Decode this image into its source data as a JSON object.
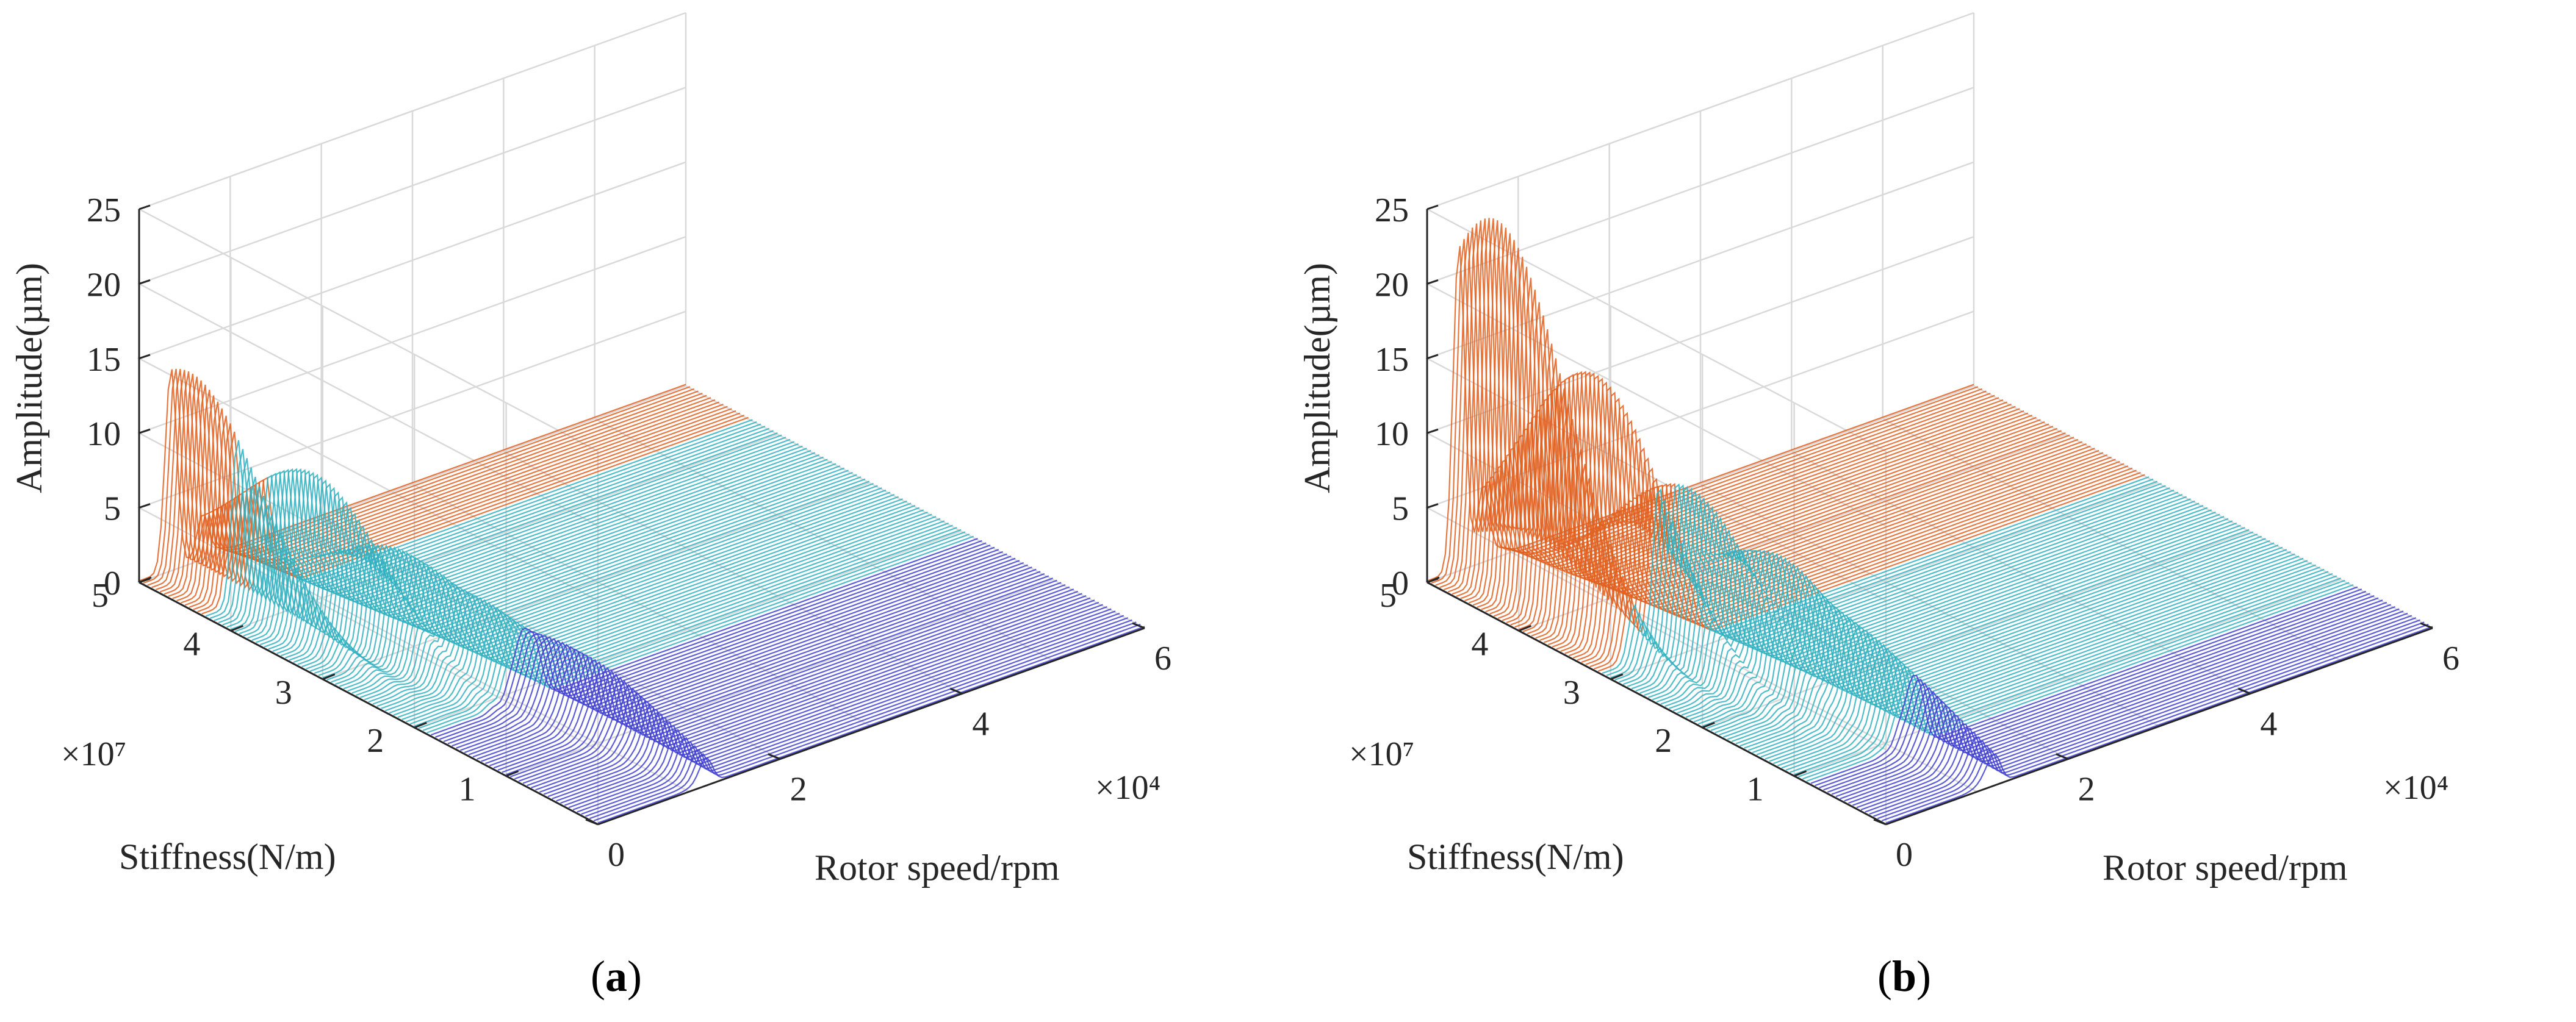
{
  "colors": {
    "series": "#4040d0",
    "peak_high": "#e06020",
    "peak_mid": "#30b0c0",
    "grid": "#d9d9d9",
    "axis": "#262626"
  },
  "chart_data": [
    {
      "type": "surface-waterfall",
      "caption": {
        "open": "(",
        "letter": "a",
        "close": ")"
      },
      "zlabel": "Amplitude(µm)",
      "ylabel": "Stiffness(N/m)",
      "xlabel": "Rotor speed/rpm",
      "x_multiplier": "×10⁴",
      "y_multiplier": "×10⁷",
      "x_ticks": [
        "0",
        "2",
        "4",
        "6"
      ],
      "y_ticks": [
        "1",
        "2",
        "3",
        "4",
        "5"
      ],
      "z_ticks": [
        "0",
        "5",
        "10",
        "15",
        "20",
        "25"
      ],
      "xlim": [
        0,
        6
      ],
      "ylim": [
        0,
        5
      ],
      "zlim": [
        0,
        25
      ],
      "peaks": [
        {
          "speed": 0.35,
          "stiffness": 4.8,
          "amplitude": 14
        },
        {
          "speed": 0.7,
          "stiffness": 3.8,
          "amplitude": 9.8
        },
        {
          "speed": 0.88,
          "stiffness": 3.0,
          "amplitude": 6
        },
        {
          "speed": 1.0,
          "stiffness": 2.2,
          "amplitude": 4.5
        },
        {
          "speed": 1.12,
          "stiffness": 1.5,
          "amplitude": 3.5
        },
        {
          "speed": 1.2,
          "stiffness": 0.8,
          "amplitude": 2.5
        }
      ]
    },
    {
      "type": "surface-waterfall",
      "caption": {
        "open": "(",
        "letter": "b",
        "close": ")"
      },
      "zlabel": "Amplitude(µm)",
      "ylabel": "Stiffness(N/m)",
      "xlabel": "Rotor speed/rpm",
      "x_multiplier": "×10⁴",
      "y_multiplier": "×10⁷",
      "x_ticks": [
        "0",
        "2",
        "4",
        "6"
      ],
      "y_ticks": [
        "1",
        "2",
        "3",
        "4",
        "5"
      ],
      "z_ticks": [
        "0",
        "5",
        "10",
        "15",
        "20",
        "25"
      ],
      "xlim": [
        0,
        6
      ],
      "ylim": [
        0,
        5
      ],
      "zlim": [
        0,
        25
      ],
      "peaks": [
        {
          "speed": 0.35,
          "stiffness": 4.6,
          "amplitude": 25
        },
        {
          "speed": 0.62,
          "stiffness": 3.8,
          "amplitude": 17
        },
        {
          "speed": 0.82,
          "stiffness": 3.0,
          "amplitude": 11
        },
        {
          "speed": 0.98,
          "stiffness": 2.2,
          "amplitude": 8
        },
        {
          "speed": 1.1,
          "stiffness": 1.5,
          "amplitude": 5
        },
        {
          "speed": 1.2,
          "stiffness": 0.8,
          "amplitude": 3
        }
      ]
    }
  ]
}
